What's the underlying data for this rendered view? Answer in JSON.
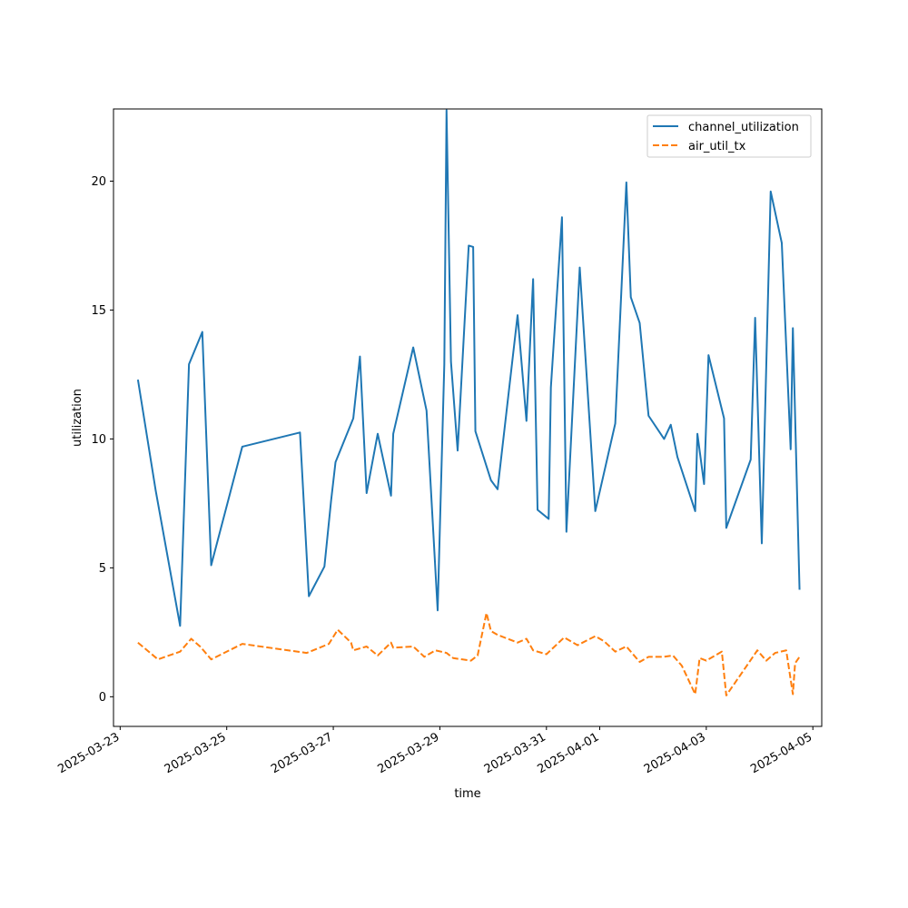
{
  "chart_data": {
    "type": "line",
    "xlabel": "time",
    "ylabel": "utilization",
    "x_type": "datetime",
    "xlim": [
      "2025-03-22T21:00",
      "2025-04-05T04:00"
    ],
    "ylim": [
      -1.15,
      22.8
    ],
    "x_ticks": [
      "2025-03-23",
      "2025-03-25",
      "2025-03-27",
      "2025-03-29",
      "2025-03-31",
      "2025-04-01",
      "2025-04-03",
      "2025-04-05"
    ],
    "y_ticks": [
      0,
      5,
      10,
      15,
      20
    ],
    "grid": false,
    "legend_position": "top-right",
    "series": [
      {
        "name": "channel_utilization",
        "color": "#1f77b4",
        "style": "solid",
        "points": [
          [
            "2025-03-23T08:00",
            12.3
          ],
          [
            "2025-03-23T16:00",
            8.0
          ],
          [
            "2025-03-24T03:00",
            2.75
          ],
          [
            "2025-03-24T07:00",
            12.9
          ],
          [
            "2025-03-24T13:00",
            14.15
          ],
          [
            "2025-03-24T17:00",
            5.1
          ],
          [
            "2025-03-25T07:00",
            9.7
          ],
          [
            "2025-03-26T09:00",
            10.25
          ],
          [
            "2025-03-26T13:00",
            3.9
          ],
          [
            "2025-03-26T20:00",
            5.05
          ],
          [
            "2025-03-26T23:00",
            7.6
          ],
          [
            "2025-03-27T01:00",
            9.1
          ],
          [
            "2025-03-27T09:00",
            10.8
          ],
          [
            "2025-03-27T12:00",
            13.2
          ],
          [
            "2025-03-27T15:00",
            7.9
          ],
          [
            "2025-03-27T20:00",
            10.2
          ],
          [
            "2025-03-28T02:00",
            7.8
          ],
          [
            "2025-03-28T03:00",
            10.2
          ],
          [
            "2025-03-28T12:00",
            13.55
          ],
          [
            "2025-03-28T18:00",
            11.1
          ],
          [
            "2025-03-28T23:00",
            3.35
          ],
          [
            "2025-03-29T02:00",
            12.9
          ],
          [
            "2025-03-29T03:00",
            22.75
          ],
          [
            "2025-03-29T05:00",
            13.0
          ],
          [
            "2025-03-29T08:00",
            9.55
          ],
          [
            "2025-03-29T13:00",
            17.5
          ],
          [
            "2025-03-29T15:00",
            17.45
          ],
          [
            "2025-03-29T16:00",
            10.3
          ],
          [
            "2025-03-29T23:00",
            8.4
          ],
          [
            "2025-03-30T02:00",
            8.05
          ],
          [
            "2025-03-30T11:00",
            14.8
          ],
          [
            "2025-03-30T15:00",
            10.7
          ],
          [
            "2025-03-30T18:00",
            16.2
          ],
          [
            "2025-03-30T20:00",
            7.25
          ],
          [
            "2025-03-31T01:00",
            6.9
          ],
          [
            "2025-03-31T02:00",
            12.0
          ],
          [
            "2025-03-31T07:00",
            18.6
          ],
          [
            "2025-03-31T09:00",
            6.4
          ],
          [
            "2025-03-31T15:00",
            16.65
          ],
          [
            "2025-03-31T22:00",
            7.2
          ],
          [
            "2025-04-01T07:00",
            10.6
          ],
          [
            "2025-04-01T12:00",
            19.95
          ],
          [
            "2025-04-01T14:00",
            15.5
          ],
          [
            "2025-04-01T18:00",
            14.5
          ],
          [
            "2025-04-01T22:00",
            10.9
          ],
          [
            "2025-04-02T05:00",
            10.0
          ],
          [
            "2025-04-02T08:00",
            10.55
          ],
          [
            "2025-04-02T11:00",
            9.3
          ],
          [
            "2025-04-02T19:00",
            7.2
          ],
          [
            "2025-04-02T20:00",
            10.2
          ],
          [
            "2025-04-02T23:00",
            8.25
          ],
          [
            "2025-04-03T01:00",
            13.25
          ],
          [
            "2025-04-03T08:00",
            10.8
          ],
          [
            "2025-04-03T09:00",
            6.55
          ],
          [
            "2025-04-03T20:00",
            9.2
          ],
          [
            "2025-04-03T22:00",
            14.7
          ],
          [
            "2025-04-04T01:00",
            5.95
          ],
          [
            "2025-04-04T05:00",
            19.6
          ],
          [
            "2025-04-04T10:00",
            17.6
          ],
          [
            "2025-04-04T14:00",
            9.6
          ],
          [
            "2025-04-04T15:00",
            14.3
          ],
          [
            "2025-04-04T18:00",
            4.15
          ]
        ]
      },
      {
        "name": "air_util_tx",
        "color": "#ff7f0e",
        "style": "dashed",
        "points": [
          [
            "2025-03-23T08:00",
            2.1
          ],
          [
            "2025-03-23T17:00",
            1.45
          ],
          [
            "2025-03-24T03:00",
            1.75
          ],
          [
            "2025-03-24T08:00",
            2.25
          ],
          [
            "2025-03-24T12:00",
            1.95
          ],
          [
            "2025-03-24T17:00",
            1.45
          ],
          [
            "2025-03-25T07:00",
            2.05
          ],
          [
            "2025-03-26T12:00",
            1.7
          ],
          [
            "2025-03-26T22:00",
            2.05
          ],
          [
            "2025-03-27T02:00",
            2.6
          ],
          [
            "2025-03-27T08:00",
            2.1
          ],
          [
            "2025-03-27T09:00",
            1.8
          ],
          [
            "2025-03-27T15:00",
            1.95
          ],
          [
            "2025-03-27T20:00",
            1.6
          ],
          [
            "2025-03-28T02:00",
            2.1
          ],
          [
            "2025-03-28T03:00",
            1.9
          ],
          [
            "2025-03-28T12:00",
            1.95
          ],
          [
            "2025-03-28T17:00",
            1.55
          ],
          [
            "2025-03-28T22:00",
            1.8
          ],
          [
            "2025-03-29T03:00",
            1.7
          ],
          [
            "2025-03-29T06:00",
            1.5
          ],
          [
            "2025-03-29T14:00",
            1.4
          ],
          [
            "2025-03-29T17:00",
            1.6
          ],
          [
            "2025-03-29T21:00",
            3.25
          ],
          [
            "2025-03-29T23:00",
            2.55
          ],
          [
            "2025-03-30T02:00",
            2.4
          ],
          [
            "2025-03-30T11:00",
            2.1
          ],
          [
            "2025-03-30T15:00",
            2.25
          ],
          [
            "2025-03-30T18:00",
            1.8
          ],
          [
            "2025-03-31T00:00",
            1.65
          ],
          [
            "2025-03-31T08:00",
            2.3
          ],
          [
            "2025-03-31T14:00",
            2.0
          ],
          [
            "2025-03-31T22:00",
            2.35
          ],
          [
            "2025-04-01T02:00",
            2.15
          ],
          [
            "2025-04-01T07:00",
            1.75
          ],
          [
            "2025-04-01T12:00",
            1.95
          ],
          [
            "2025-04-01T18:00",
            1.35
          ],
          [
            "2025-04-01T22:00",
            1.55
          ],
          [
            "2025-04-02T05:00",
            1.55
          ],
          [
            "2025-04-02T09:00",
            1.6
          ],
          [
            "2025-04-02T13:00",
            1.2
          ],
          [
            "2025-04-02T19:00",
            0.1
          ],
          [
            "2025-04-02T21:00",
            1.5
          ],
          [
            "2025-04-03T00:00",
            1.4
          ],
          [
            "2025-04-03T07:00",
            1.75
          ],
          [
            "2025-04-03T09:00",
            0.05
          ],
          [
            "2025-04-03T19:00",
            1.3
          ],
          [
            "2025-04-03T23:00",
            1.8
          ],
          [
            "2025-04-04T03:00",
            1.4
          ],
          [
            "2025-04-04T07:00",
            1.7
          ],
          [
            "2025-04-04T12:00",
            1.8
          ],
          [
            "2025-04-04T15:00",
            0.1
          ],
          [
            "2025-04-04T16:00",
            1.3
          ],
          [
            "2025-04-04T18:00",
            1.55
          ]
        ]
      }
    ]
  }
}
